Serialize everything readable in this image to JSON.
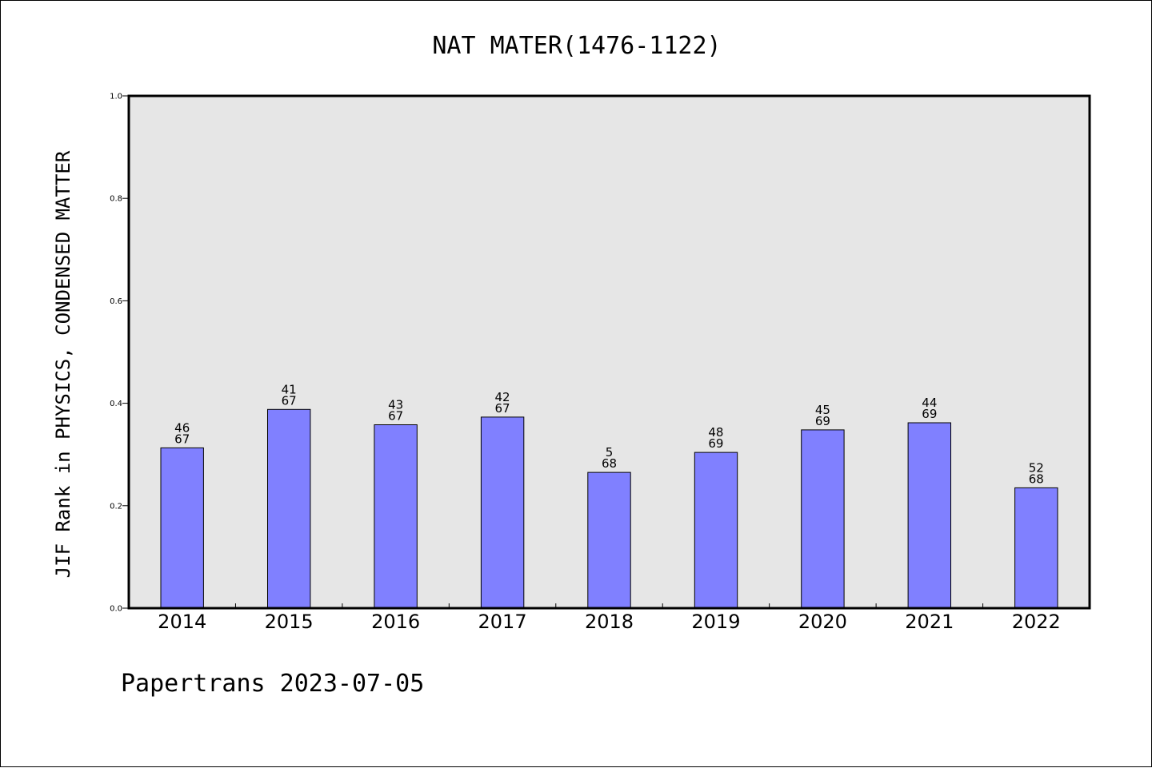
{
  "chart_data": {
    "type": "bar",
    "title": "NAT MATER(1476-1122)",
    "xlabel": "",
    "ylabel": "JIF Rank in PHYSICS, CONDENSED MATTER",
    "ylim": [
      0,
      1.0
    ],
    "yticks": [
      "0.0",
      "0.2",
      "0.4",
      "0.6",
      "0.8",
      "1.0"
    ],
    "categories": [
      "2014",
      "2015",
      "2016",
      "2017",
      "2018",
      "2019",
      "2020",
      "2021",
      "2022"
    ],
    "values": [
      0.313,
      0.388,
      0.358,
      0.373,
      0.265,
      0.304,
      0.348,
      0.362,
      0.235
    ],
    "data_labels": [
      {
        "rank": "46",
        "total": "67"
      },
      {
        "rank": "41",
        "total": "67"
      },
      {
        "rank": "43",
        "total": "67"
      },
      {
        "rank": "42",
        "total": "67"
      },
      {
        "rank": "5",
        "total": "68"
      },
      {
        "rank": "48",
        "total": "69"
      },
      {
        "rank": "45",
        "total": "69"
      },
      {
        "rank": "44",
        "total": "69"
      },
      {
        "rank": "52",
        "total": "68"
      }
    ],
    "grid": false,
    "colors": {
      "bar": "#8080ff",
      "plot_background": "#e6e6e6",
      "axis": "#000000"
    }
  },
  "footer": {
    "text": "Papertrans 2023-07-05"
  }
}
